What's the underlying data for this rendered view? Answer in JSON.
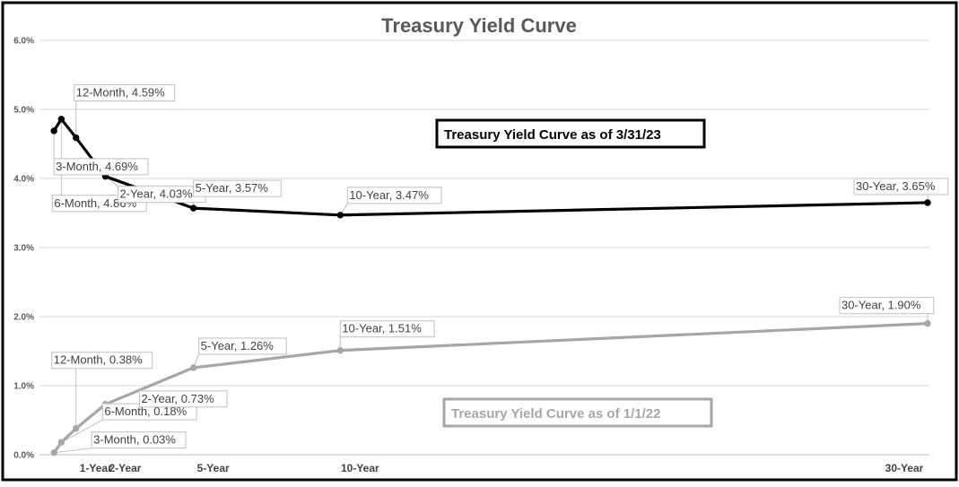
{
  "chart_data": {
    "type": "line",
    "title": "Treasury Yield Curve",
    "xlabel": "",
    "ylabel": "",
    "ylim": [
      0,
      6
    ],
    "yticks": [
      "0.0%",
      "1.0%",
      "2.0%",
      "3.0%",
      "4.0%",
      "5.0%",
      "6.0%"
    ],
    "xlim": [
      0,
      30
    ],
    "xticks": [
      {
        "label": "1-Year",
        "x": 1
      },
      {
        "label": "2-Year",
        "x": 2
      },
      {
        "label": "5-Year",
        "x": 5
      },
      {
        "label": "10-Year",
        "x": 10
      },
      {
        "label": "30-Year",
        "x": 30
      }
    ],
    "grid": true,
    "series": [
      {
        "name": "Treasury Yield Curve as of 3/31/23",
        "color": "#000000",
        "points": [
          {
            "maturity": "3-Month",
            "x": 0.25,
            "y": 4.69,
            "label": "3-Month, 4.69%"
          },
          {
            "maturity": "6-Month",
            "x": 0.5,
            "y": 4.86,
            "label": "6-Month, 4.86%"
          },
          {
            "maturity": "12-Month",
            "x": 1,
            "y": 4.59,
            "label": "12-Month, 4.59%"
          },
          {
            "maturity": "2-Year",
            "x": 2,
            "y": 4.03,
            "label": "2-Year, 4.03%"
          },
          {
            "maturity": "5-Year",
            "x": 5,
            "y": 3.57,
            "label": "5-Year, 3.57%"
          },
          {
            "maturity": "10-Year",
            "x": 10,
            "y": 3.47,
            "label": "10-Year, 3.47%"
          },
          {
            "maturity": "30-Year",
            "x": 30,
            "y": 3.65,
            "label": "30-Year, 3.65%"
          }
        ]
      },
      {
        "name": "Treasury Yield Curve as of 1/1/22",
        "color": "#a6a6a6",
        "points": [
          {
            "maturity": "3-Month",
            "x": 0.25,
            "y": 0.03,
            "label": "3-Month, 0.03%"
          },
          {
            "maturity": "6-Month",
            "x": 0.5,
            "y": 0.18,
            "label": "6-Month, 0.18%"
          },
          {
            "maturity": "12-Month",
            "x": 1,
            "y": 0.38,
            "label": "12-Month, 0.38%"
          },
          {
            "maturity": "2-Year",
            "x": 2,
            "y": 0.73,
            "label": "2-Year, 0.73%"
          },
          {
            "maturity": "5-Year",
            "x": 5,
            "y": 1.26,
            "label": "5-Year, 1.26%"
          },
          {
            "maturity": "10-Year",
            "x": 10,
            "y": 1.51,
            "label": "10-Year, 1.51%"
          },
          {
            "maturity": "30-Year",
            "x": 30,
            "y": 1.9,
            "label": "30-Year, 1.90%"
          }
        ]
      }
    ]
  }
}
